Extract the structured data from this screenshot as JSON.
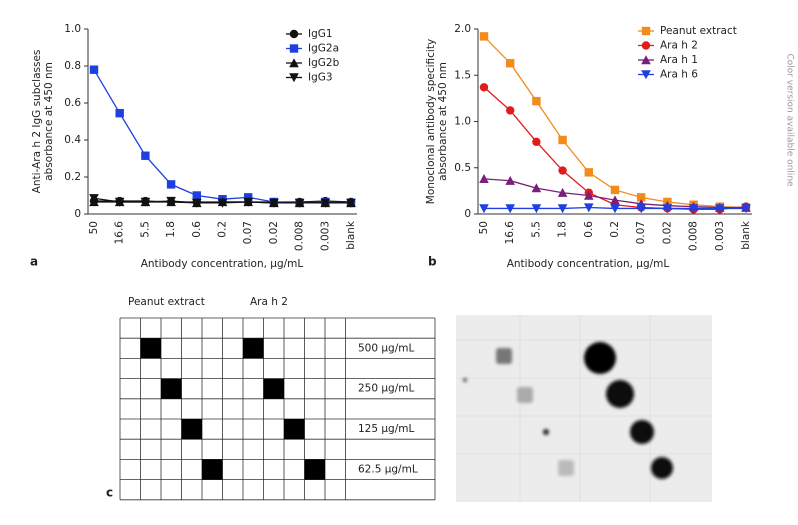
{
  "chart_data": [
    {
      "type": "line",
      "panel_label": "a",
      "ylabel": [
        "Anti-Ara h 2 IgG subclasses",
        "absorbance at 450 nm"
      ],
      "xlabel": "Antibody concentration, µg/mL",
      "categories": [
        "50",
        "16.6",
        "5.5",
        "1.8",
        "0.6",
        "0.2",
        "0.07",
        "0.02",
        "0.008",
        "0.003",
        "blank"
      ],
      "ylim": [
        0,
        1
      ],
      "yticks": [
        0,
        0.2,
        0.4,
        0.6,
        0.8,
        {
          "value": 1,
          "label": "1.0"
        }
      ],
      "legend": "upper right",
      "series": [
        {
          "name": "IgG1",
          "color": "#111111",
          "marker": "circle",
          "values": [
            0.07,
            0.07,
            0.07,
            0.065,
            0.065,
            0.065,
            0.065,
            0.065,
            0.065,
            0.07,
            0.065
          ]
        },
        {
          "name": "IgG2a",
          "color": "#1f3fe0",
          "marker": "square",
          "values": [
            0.78,
            0.545,
            0.315,
            0.16,
            0.1,
            0.08,
            0.09,
            0.065,
            0.06,
            0.065,
            0.06
          ]
        },
        {
          "name": "IgG2b",
          "color": "#111111",
          "marker": "triangle-up",
          "values": [
            0.065,
            0.065,
            0.065,
            0.065,
            0.06,
            0.065,
            0.065,
            0.06,
            0.06,
            0.06,
            0.06
          ]
        },
        {
          "name": "IgG3",
          "color": "#111111",
          "marker": "triangle-down",
          "values": [
            0.085,
            0.065,
            0.065,
            0.07,
            0.06,
            0.06,
            0.065,
            0.06,
            0.06,
            0.06,
            0.06
          ]
        }
      ]
    },
    {
      "type": "line",
      "panel_label": "b",
      "ylabel": [
        "Monoclonal antibody specificity",
        "absorbance at 450 nm"
      ],
      "xlabel": "Antibody concentration, µg/mL",
      "categories": [
        "50",
        "16.6",
        "5.5",
        "1.8",
        "0.6",
        "0.2",
        "0.07",
        "0.02",
        "0.008",
        "0.003",
        "blank"
      ],
      "ylim": [
        0,
        2
      ],
      "yticks": [
        0,
        0.5,
        {
          "value": 1,
          "label": "1.0"
        },
        1.5,
        {
          "value": 2,
          "label": "2.0"
        }
      ],
      "legend": "upper right",
      "series": [
        {
          "name": "Peanut extract",
          "color": "#f28a1c",
          "marker": "square",
          "values": [
            1.92,
            1.63,
            1.22,
            0.8,
            0.45,
            0.26,
            0.18,
            0.13,
            0.1,
            0.08,
            0.07
          ]
        },
        {
          "name": "Ara h 2",
          "color": "#e21b1b",
          "marker": "circle",
          "values": [
            1.37,
            1.12,
            0.78,
            0.47,
            0.23,
            0.1,
            0.07,
            0.06,
            0.05,
            0.05,
            0.08
          ]
        },
        {
          "name": "Ara h 1",
          "color": "#7a1f7a",
          "marker": "triangle-up",
          "values": [
            0.38,
            0.36,
            0.28,
            0.23,
            0.2,
            0.15,
            0.11,
            0.09,
            0.08,
            0.07,
            0.07
          ]
        },
        {
          "name": "Ara h 6",
          "color": "#1f3fe0",
          "marker": "triangle-down",
          "values": [
            0.06,
            0.06,
            0.06,
            0.06,
            0.07,
            0.06,
            0.06,
            0.06,
            0.06,
            0.06,
            0.06
          ]
        }
      ]
    }
  ],
  "panel_c": {
    "label": "c",
    "columns": [
      "Peanut extract",
      "Ara h 2"
    ],
    "rows": [
      "500 µg/mL",
      "250 µg/mL",
      "125 µg/mL",
      "62.5 µg/mL"
    ]
  },
  "side_note": "Color version available online"
}
